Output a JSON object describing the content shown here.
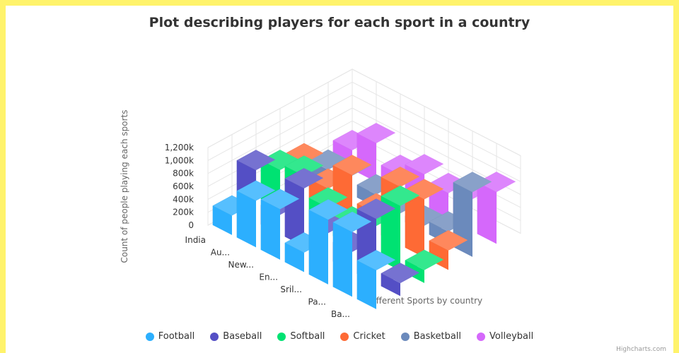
{
  "chart_data": {
    "type": "bar",
    "title": "Plot describing players for each sport in a country",
    "xlabel": "Different Sports by country",
    "ylabel": "Count of people playing each sports",
    "categories": [
      "India",
      "Au...",
      "New...",
      "En...",
      "Sril...",
      "Pa...",
      "Ba..."
    ],
    "ylim": [
      0,
      1200000
    ],
    "yticks": [
      "0",
      "200k",
      "400k",
      "600k",
      "800k",
      "1,000k",
      "1,200k"
    ],
    "grid": true,
    "legend_position": "bottom",
    "series": [
      {
        "name": "Football",
        "color": "#2caffe",
        "values": [
          300000,
          720000,
          780000,
          300000,
          1000000,
          1000000,
          600000
        ]
      },
      {
        "name": "Baseball",
        "color": "#544fc5",
        "values": [
          800000,
          300000,
          900000,
          400000,
          300000,
          1000000,
          200000
        ]
      },
      {
        "name": "Softball",
        "color": "#00e272",
        "values": [
          600000,
          700000,
          400000,
          300000,
          500000,
          1000000,
          200000
        ]
      },
      {
        "name": "Cricket",
        "color": "#fe6a35",
        "values": [
          500000,
          300000,
          700000,
          300000,
          900000,
          900000,
          300000
        ]
      },
      {
        "name": "Basketball",
        "color": "#6b8abc",
        "values": [
          200000,
          300000,
          200000,
          100000,
          100000,
          200000,
          1000000
        ]
      },
      {
        "name": "Volleyball",
        "color": "#d568fb",
        "values": [
          300000,
          600000,
          300000,
          500000,
          400000,
          500000,
          800000
        ]
      }
    ]
  },
  "credits": "Highcharts.com"
}
